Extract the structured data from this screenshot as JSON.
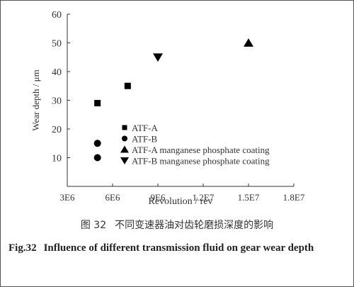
{
  "figure": {
    "caption_cn_number": "图 32",
    "caption_cn_text": "不同变速器油对齿轮磨损深度的影响",
    "caption_en_number": "Fig.32",
    "caption_en_text": "Influence of different transmission fluid on gear wear depth"
  },
  "chart_data": {
    "type": "scatter",
    "xlabel": "Revolution / rev",
    "ylabel": "Wear depth / μm",
    "xlim": [
      3000000,
      18000000
    ],
    "ylim": [
      0,
      60
    ],
    "x_ticks": [
      3000000,
      6000000,
      9000000,
      12000000,
      15000000,
      18000000
    ],
    "x_tick_labels": [
      "3E6",
      "6E6",
      "9E6",
      "1.2E7",
      "1.5E7",
      "1.8E7"
    ],
    "y_ticks": [
      10,
      20,
      30,
      40,
      50,
      60
    ],
    "y_tick_labels": [
      "10",
      "20",
      "30",
      "40",
      "50",
      "60"
    ],
    "grid": false,
    "legend_position": "bottom-left inside",
    "series": [
      {
        "name": "ATF-A",
        "marker": "square",
        "color": "#000000",
        "points": [
          [
            5000000,
            29
          ],
          [
            7000000,
            35
          ]
        ]
      },
      {
        "name": "ATF-B",
        "marker": "circle",
        "color": "#000000",
        "points": [
          [
            5000000,
            15
          ],
          [
            5000000,
            10
          ]
        ]
      },
      {
        "name": "ATF-A manganese phosphate coating",
        "marker": "triangle-up",
        "color": "#000000",
        "points": [
          [
            15000000,
            50
          ]
        ]
      },
      {
        "name": "ATF-B manganese phosphate coating",
        "marker": "triangle-down",
        "color": "#000000",
        "points": [
          [
            9000000,
            45
          ]
        ]
      }
    ]
  }
}
